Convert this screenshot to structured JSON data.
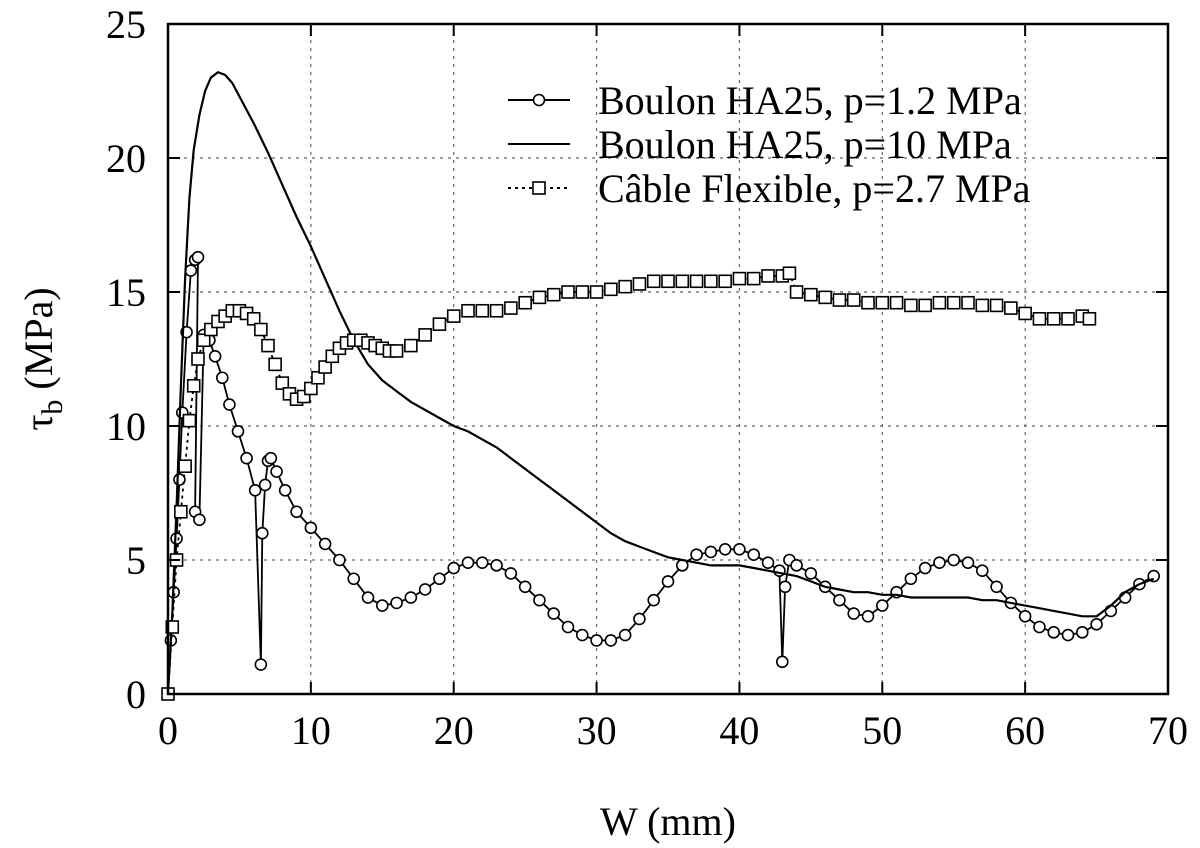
{
  "chart_data": {
    "type": "line",
    "title": "",
    "xlabel": "W (mm)",
    "ylabel_main": "τ",
    "ylabel_sub": "b",
    "ylabel_unit": " (MPa)",
    "xlim": [
      0,
      70
    ],
    "ylim": [
      0,
      25
    ],
    "x_ticks": [
      0,
      10,
      20,
      30,
      40,
      50,
      60,
      70
    ],
    "y_ticks": [
      0,
      5,
      10,
      15,
      20,
      25
    ],
    "grid": true,
    "legend_position": "top-right",
    "series": [
      {
        "name": "Boulon HA25, p=1.2 MPa",
        "marker": "circle",
        "line": "solid",
        "x": [
          0,
          0.2,
          0.4,
          0.6,
          0.8,
          1.0,
          1.3,
          1.6,
          1.9,
          2.1,
          1.9,
          2.2,
          2.5,
          2.9,
          3.3,
          3.8,
          4.3,
          4.9,
          5.5,
          6.1,
          6.5,
          6.6,
          6.8,
          7.0,
          7.2,
          7.6,
          8.2,
          9.0,
          10.0,
          11.0,
          12.0,
          13.0,
          14.0,
          15.0,
          16.0,
          17.0,
          18.0,
          19.0,
          20.0,
          21.0,
          22.0,
          23.0,
          24.0,
          25.0,
          26.0,
          27.0,
          28.0,
          29.0,
          30.0,
          31.0,
          32.0,
          33.0,
          34.0,
          35.0,
          36.0,
          37.0,
          38.0,
          39.0,
          40.0,
          41.0,
          42.0,
          42.8,
          43.0,
          43.2,
          43.5,
          44.0,
          45.0,
          46.0,
          47.0,
          48.0,
          49.0,
          50.0,
          51.0,
          52.0,
          53.0,
          54.0,
          55.0,
          56.0,
          57.0,
          58.0,
          59.0,
          60.0,
          61.0,
          62.0,
          63.0,
          64.0,
          65.0,
          66.0,
          67.0,
          68.0,
          69.0
        ],
        "y": [
          0,
          2.0,
          3.8,
          5.8,
          8.0,
          10.5,
          13.5,
          15.8,
          16.2,
          16.3,
          6.8,
          6.5,
          13.4,
          13.2,
          12.6,
          11.8,
          10.8,
          9.8,
          8.8,
          7.6,
          1.1,
          6.0,
          7.8,
          8.7,
          8.8,
          8.3,
          7.6,
          6.8,
          6.2,
          5.6,
          5.0,
          4.3,
          3.6,
          3.3,
          3.4,
          3.6,
          3.9,
          4.3,
          4.7,
          4.9,
          4.9,
          4.8,
          4.5,
          4.0,
          3.5,
          3.0,
          2.5,
          2.2,
          2.0,
          2.0,
          2.2,
          2.8,
          3.5,
          4.2,
          4.8,
          5.2,
          5.3,
          5.4,
          5.4,
          5.2,
          4.9,
          4.6,
          1.2,
          4.0,
          5.0,
          4.8,
          4.5,
          4.0,
          3.5,
          3.0,
          2.9,
          3.3,
          3.8,
          4.3,
          4.7,
          4.9,
          5.0,
          4.9,
          4.6,
          4.0,
          3.4,
          2.9,
          2.5,
          2.3,
          2.2,
          2.3,
          2.6,
          3.1,
          3.6,
          4.1,
          4.4
        ]
      },
      {
        "name": "Boulon HA25, p=10 MPa",
        "marker": "none",
        "line": "solid",
        "x": [
          0,
          0.3,
          0.6,
          0.9,
          1.2,
          1.5,
          1.8,
          2.2,
          2.6,
          3.0,
          3.5,
          4.0,
          4.5,
          5.0,
          6.0,
          7.0,
          8.0,
          9.0,
          10.0,
          11.0,
          12.0,
          13.0,
          14.0,
          15.0,
          16.0,
          17.0,
          18.0,
          19.0,
          20.0,
          21.0,
          22.0,
          23.0,
          24.0,
          25.0,
          26.0,
          27.0,
          28.0,
          29.0,
          30.0,
          31.0,
          32.0,
          33.0,
          34.0,
          35.0,
          36.0,
          37.0,
          38.0,
          39.0,
          40.0,
          41.0,
          42.0,
          43.0,
          44.0,
          45.0,
          46.0,
          47.0,
          48.0,
          49.0,
          50.0,
          51.0,
          52.0,
          53.0,
          54.0,
          55.0,
          56.0,
          57.0,
          58.0,
          59.0,
          60.0,
          61.0,
          62.0,
          63.0,
          64.0,
          65.0,
          66.0,
          67.0,
          68.0,
          69.0
        ],
        "y": [
          0,
          3.0,
          7.0,
          11.5,
          15.5,
          18.5,
          20.3,
          21.6,
          22.5,
          23.0,
          23.2,
          23.1,
          22.8,
          22.3,
          21.3,
          20.2,
          19.0,
          17.8,
          16.7,
          15.5,
          14.3,
          13.2,
          12.3,
          11.7,
          11.3,
          10.9,
          10.6,
          10.3,
          10.0,
          9.8,
          9.5,
          9.2,
          8.8,
          8.4,
          8.0,
          7.6,
          7.2,
          6.8,
          6.4,
          6.0,
          5.7,
          5.5,
          5.3,
          5.1,
          5.0,
          4.9,
          4.8,
          4.8,
          4.8,
          4.7,
          4.6,
          4.5,
          4.4,
          4.2,
          4.0,
          3.9,
          3.8,
          3.8,
          3.7,
          3.7,
          3.6,
          3.6,
          3.6,
          3.6,
          3.6,
          3.5,
          3.5,
          3.4,
          3.3,
          3.2,
          3.1,
          3.0,
          2.9,
          2.9,
          3.3,
          3.8,
          4.1,
          4.3
        ]
      },
      {
        "name": "Câble Flexible, p=2.7 MPa",
        "marker": "square",
        "line": "dotted",
        "x": [
          0,
          0.3,
          0.6,
          0.9,
          1.2,
          1.5,
          1.8,
          2.1,
          2.5,
          3.0,
          3.5,
          4.0,
          4.5,
          5.0,
          5.5,
          6.0,
          6.5,
          7.0,
          7.5,
          8.0,
          8.5,
          9.0,
          9.5,
          10.0,
          10.5,
          11.0,
          11.5,
          12.0,
          12.5,
          13.0,
          13.5,
          14.0,
          14.5,
          15.0,
          15.5,
          16.0,
          17.0,
          18.0,
          19.0,
          20.0,
          21.0,
          22.0,
          23.0,
          24.0,
          25.0,
          26.0,
          27.0,
          28.0,
          29.0,
          30.0,
          31.0,
          32.0,
          33.0,
          34.0,
          35.0,
          36.0,
          37.0,
          38.0,
          39.0,
          40.0,
          41.0,
          42.0,
          43.0,
          43.5,
          44.0,
          45.0,
          46.0,
          47.0,
          48.0,
          49.0,
          50.0,
          51.0,
          52.0,
          53.0,
          54.0,
          55.0,
          56.0,
          57.0,
          58.0,
          59.0,
          60.0,
          61.0,
          62.0,
          63.0,
          64.0,
          64.5
        ],
        "y": [
          0,
          2.5,
          5.0,
          6.8,
          8.5,
          10.2,
          11.5,
          12.5,
          13.2,
          13.6,
          13.9,
          14.1,
          14.3,
          14.3,
          14.2,
          14.0,
          13.6,
          13.0,
          12.3,
          11.6,
          11.2,
          11.0,
          11.1,
          11.4,
          11.8,
          12.2,
          12.6,
          12.9,
          13.1,
          13.2,
          13.2,
          13.1,
          13.0,
          12.9,
          12.8,
          12.8,
          13.0,
          13.4,
          13.8,
          14.1,
          14.3,
          14.3,
          14.3,
          14.4,
          14.6,
          14.8,
          14.9,
          15.0,
          15.0,
          15.0,
          15.1,
          15.2,
          15.3,
          15.4,
          15.4,
          15.4,
          15.4,
          15.4,
          15.4,
          15.5,
          15.5,
          15.6,
          15.6,
          15.7,
          15.0,
          14.9,
          14.8,
          14.7,
          14.7,
          14.6,
          14.6,
          14.6,
          14.5,
          14.5,
          14.6,
          14.6,
          14.6,
          14.5,
          14.5,
          14.4,
          14.2,
          14.0,
          14.0,
          14.0,
          14.1,
          14.0
        ]
      }
    ]
  }
}
